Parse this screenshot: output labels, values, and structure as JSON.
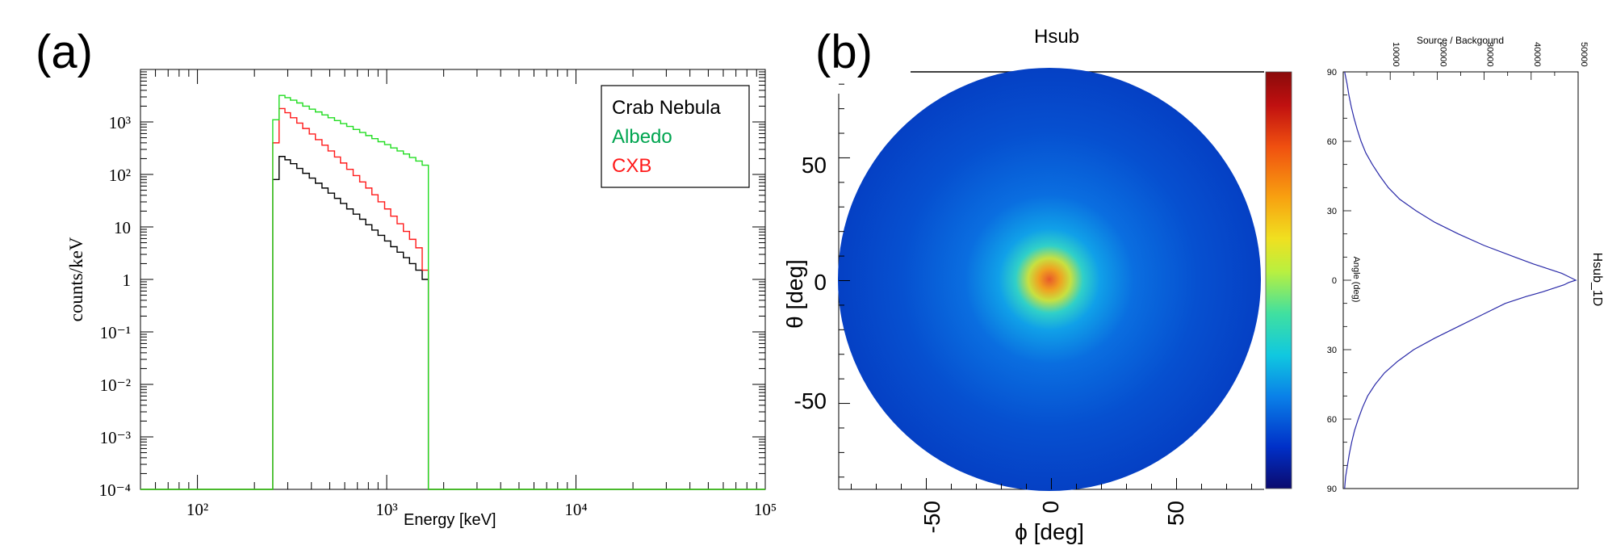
{
  "panel_labels": [
    "(a)",
    "(b)"
  ],
  "colors": {
    "crab": "#000000",
    "albedo": "#22dd22",
    "cxb": "#ff1a1a",
    "profile": "#2a2aa8",
    "legend_albedo_text": "#00a550"
  },
  "chart_data": [
    {
      "type": "line",
      "style": "step histogram",
      "title": "",
      "xlabel": "Energy [keV]",
      "ylabel": "counts/keV",
      "xscale": "log",
      "yscale": "log",
      "xlim": [
        50,
        100000
      ],
      "ylim": [
        0.0001,
        10000
      ],
      "x_ticks": [
        "10²",
        "10³",
        "10⁴",
        "10⁵"
      ],
      "y_ticks": [
        "10⁻⁴",
        "10⁻³",
        "10⁻²",
        "10⁻¹",
        "1",
        "10",
        "10²",
        "10³"
      ],
      "legend_position": "top-right",
      "bin_edges_keV": [
        250,
        270,
        290,
        310,
        335,
        360,
        390,
        420,
        455,
        490,
        530,
        570,
        615,
        665,
        720,
        775,
        835,
        900,
        975,
        1050,
        1135,
        1225,
        1320,
        1425,
        1540,
        1660
      ],
      "series": [
        {
          "name": "Crab Nebula",
          "color": "#000000",
          "values": [
            80,
            220,
            190,
            160,
            130,
            105,
            85,
            68,
            55,
            44,
            35,
            28,
            22,
            17.5,
            14,
            11,
            8.7,
            6.9,
            5.4,
            4.2,
            3.3,
            2.6,
            2.0,
            1.5,
            1.0
          ]
        },
        {
          "name": "Albedo",
          "color": "#22dd22",
          "values": [
            1100,
            3200,
            2900,
            2600,
            2300,
            2000,
            1750,
            1550,
            1360,
            1200,
            1060,
            930,
            820,
            720,
            630,
            550,
            480,
            420,
            370,
            320,
            280,
            245,
            210,
            180,
            150
          ]
        },
        {
          "name": "CXB",
          "color": "#ff1a1a",
          "values": [
            400,
            1800,
            1500,
            1200,
            950,
            750,
            590,
            460,
            360,
            280,
            215,
            165,
            125,
            95,
            72,
            55,
            41,
            30,
            22,
            16,
            11.5,
            8.2,
            5.8,
            4.0,
            1.5
          ]
        }
      ],
      "zero_level": 0.0001
    },
    {
      "type": "heatmap",
      "title": "Hsub",
      "xlabel": "ϕ [deg]",
      "ylabel": "θ [deg]",
      "xlim": [
        -85,
        85
      ],
      "ylim": [
        -85,
        85
      ],
      "x_ticks": [
        "-50",
        "0",
        "50"
      ],
      "y_ticks": [
        "50",
        "0",
        "-50"
      ],
      "description": "disk with peak at (0,0)",
      "colorbar_colors": [
        "#0b0a6e",
        "#0030c8",
        "#0a80e8",
        "#10c8e0",
        "#40e0a0",
        "#b8f040",
        "#f0e020",
        "#f8a010",
        "#f05010",
        "#c01010",
        "#8a0a0a"
      ]
    },
    {
      "type": "line",
      "title": "Hsub_1D",
      "xlabel": "Angle (deg)",
      "ylabel": "Source / Backgound",
      "value_ticks": [
        "10000",
        "20000",
        "30000",
        "40000",
        "50000"
      ],
      "angle_ticks": [
        "90",
        "60",
        "30",
        "0",
        "30",
        "60",
        "90"
      ],
      "xlim": [
        -90,
        90
      ],
      "ylim": [
        0,
        50000
      ],
      "series": [
        {
          "name": "Hsub_1D",
          "angles": [
            -90,
            -85,
            -80,
            -75,
            -70,
            -65,
            -60,
            -55,
            -50,
            -45,
            -40,
            -35,
            -30,
            -25,
            -20,
            -15,
            -10,
            -7,
            -5,
            -3,
            -2,
            -1,
            0,
            1,
            2,
            3,
            5,
            7,
            10,
            15,
            20,
            25,
            30,
            35,
            40,
            45,
            50,
            55,
            60,
            65,
            70,
            75,
            80,
            85,
            90
          ],
          "values": [
            300,
            800,
            1200,
            1700,
            2300,
            3000,
            3800,
            4800,
            6200,
            7800,
            9600,
            12000,
            15500,
            19500,
            24500,
            30000,
            36500,
            40500,
            43500,
            46500,
            47500,
            48500,
            49500,
            48000,
            47000,
            45500,
            42500,
            39000,
            34500,
            29500,
            24500,
            19500,
            15000,
            11600,
            8800,
            6800,
            5200,
            4100,
            3200,
            2400,
            1800,
            1300,
            900,
            500,
            300
          ]
        }
      ]
    }
  ]
}
